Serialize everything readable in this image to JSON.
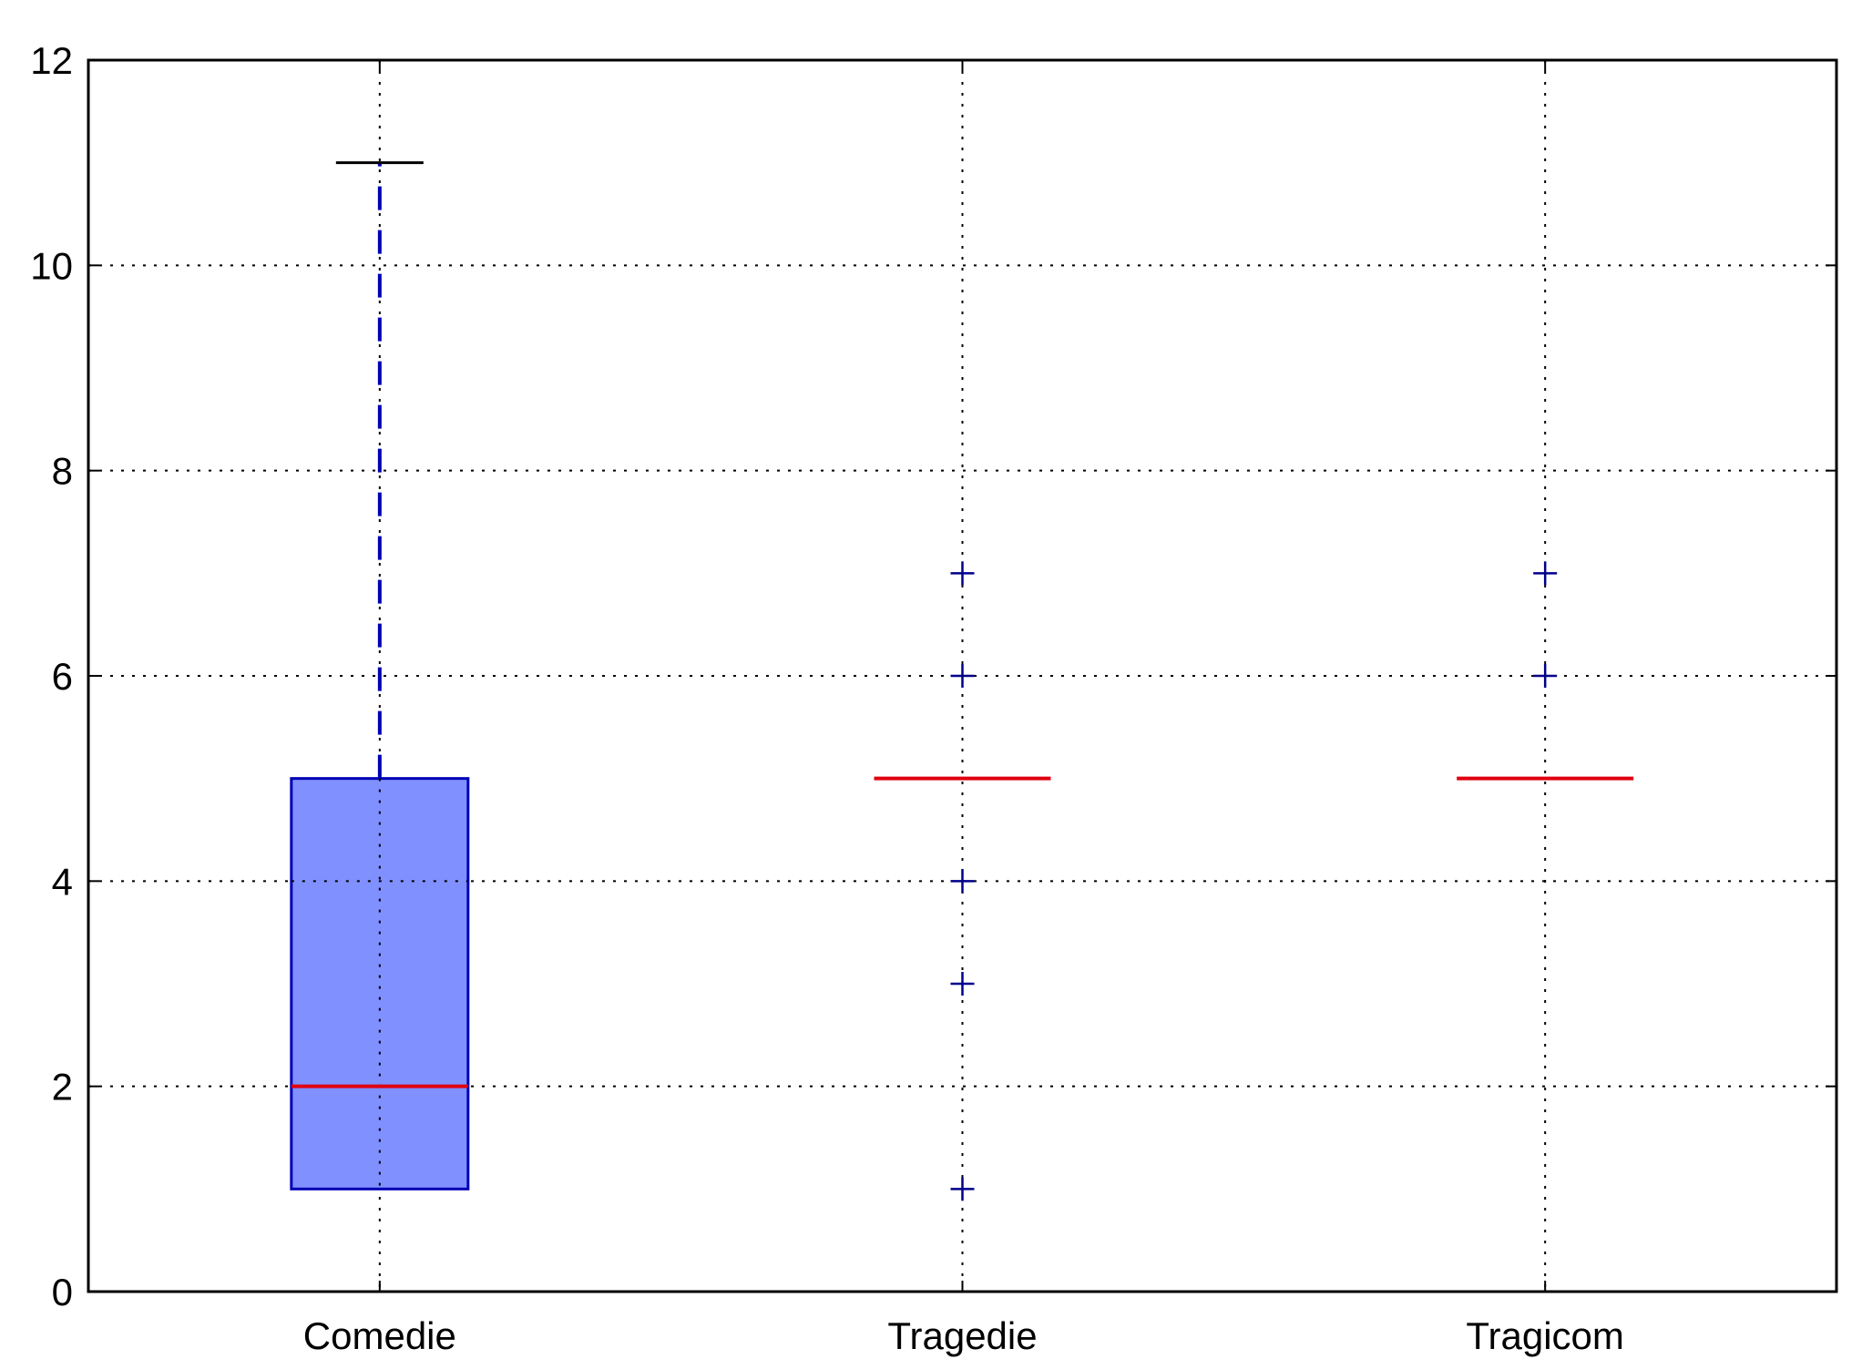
{
  "chart_data": {
    "type": "box",
    "title": "",
    "xlabel": "",
    "ylabel": "",
    "categories": [
      "Comedie",
      "Tragedie",
      "Tragicom"
    ],
    "ylim": [
      0,
      12
    ],
    "yticks": [
      "0",
      "2",
      "4",
      "6",
      "8",
      "10",
      "12"
    ],
    "grid": true,
    "boxes": [
      {
        "category": "Comedie",
        "whisker_low": 1,
        "q1": 1,
        "median": 2,
        "q3": 5,
        "whisker_high": 11,
        "outliers": []
      },
      {
        "category": "Tragedie",
        "whisker_low": 5,
        "q1": 5,
        "median": 5,
        "q3": 5,
        "whisker_high": 5,
        "outliers": [
          1,
          3,
          4,
          6,
          7
        ]
      },
      {
        "category": "Tragicom",
        "whisker_low": 5,
        "q1": 5,
        "median": 5,
        "q3": 5,
        "whisker_high": 5,
        "outliers": [
          6,
          7
        ]
      }
    ],
    "colors": {
      "box_fill": "#8091ff",
      "box_edge": "#0000b3",
      "median": "#e00010",
      "whisker": "#0000b3",
      "cap": "#000000",
      "outlier": "#00008b",
      "grid": "#000000",
      "axes": "#000000"
    }
  }
}
